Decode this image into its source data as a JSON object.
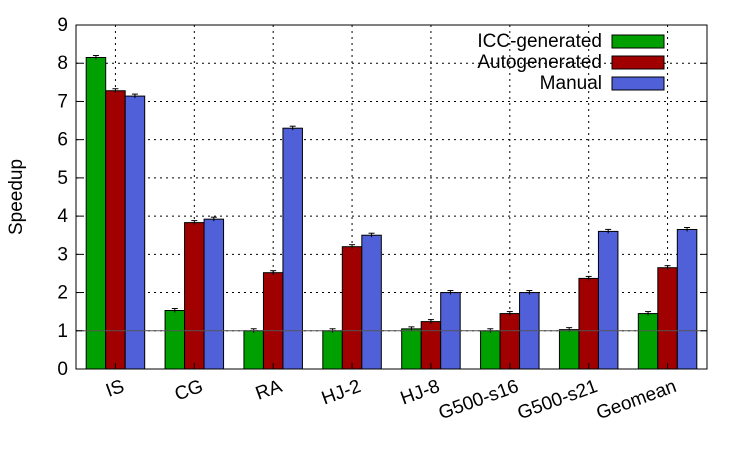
{
  "chart_data": {
    "type": "bar",
    "title": "",
    "xlabel": "",
    "ylabel": "Speedup",
    "ylim": [
      0,
      9
    ],
    "yticks": [
      0,
      1,
      2,
      3,
      4,
      5,
      6,
      7,
      8,
      9
    ],
    "grid": true,
    "legend_position": "top-right",
    "reference_line": 1,
    "categories": [
      "IS",
      "CG",
      "RA",
      "HJ-2",
      "HJ-8",
      "G500-s16",
      "G500-s21",
      "Geomean"
    ],
    "series": [
      {
        "name": "ICC-generated",
        "color": "#00a000",
        "values": [
          8.15,
          1.53,
          1.0,
          1.0,
          1.05,
          1.0,
          1.03,
          1.45
        ]
      },
      {
        "name": "Autogenerated",
        "color": "#a00000",
        "values": [
          7.28,
          3.83,
          2.52,
          3.2,
          1.24,
          1.45,
          2.37,
          2.65
        ]
      },
      {
        "name": "Manual",
        "color": "#5060d8",
        "values": [
          7.14,
          3.92,
          6.3,
          3.5,
          2.0,
          2.0,
          3.6,
          3.65
        ]
      }
    ]
  }
}
